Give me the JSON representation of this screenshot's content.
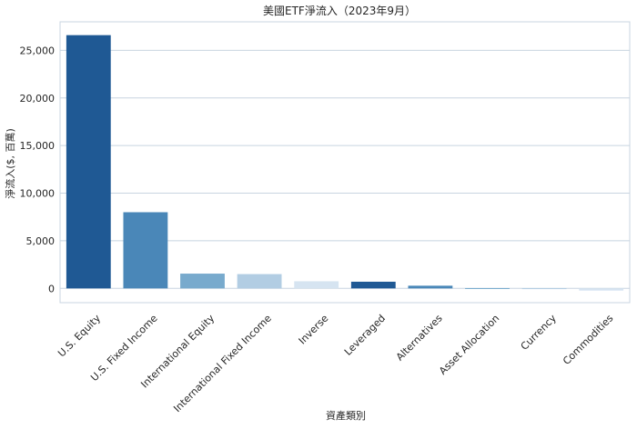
{
  "chart_data": {
    "type": "bar",
    "title": "美國ETF淨流入（2023年9月）",
    "xlabel": "資產類別",
    "ylabel": "淨流入($, 百萬)",
    "categories": [
      "U.S. Equity",
      "U.S. Fixed Income",
      "International Equity",
      "International Fixed Income",
      "Inverse",
      "Leveraged",
      "Alternatives",
      "Asset Allocation",
      "Currency",
      "Commodities"
    ],
    "values": [
      26600,
      8000,
      1550,
      1500,
      750,
      700,
      280,
      30,
      20,
      -230
    ],
    "colors": [
      "#1f5994",
      "#4a87b8",
      "#78aacd",
      "#b2cde3",
      "#d6e4f1",
      "#1f5994",
      "#4a87b8",
      "#78aacd",
      "#b2cde3",
      "#d6e4f1"
    ],
    "ylim": [
      -1500,
      28000
    ],
    "yticks": [
      0,
      5000,
      10000,
      15000,
      20000,
      25000
    ],
    "ytick_labels": [
      "0",
      "5,000",
      "10,000",
      "15,000",
      "20,000",
      "25,000"
    ],
    "grid": true,
    "grid_axis": "y"
  }
}
